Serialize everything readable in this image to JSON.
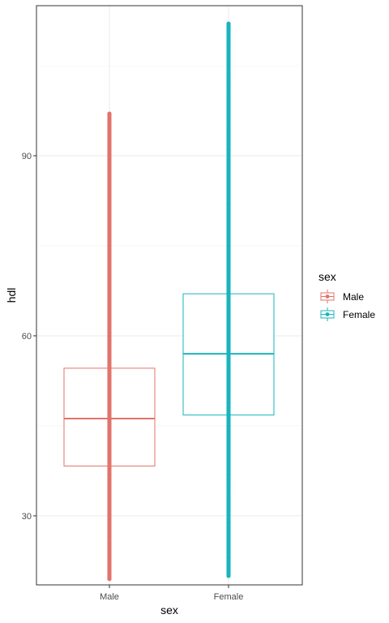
{
  "chart_data": {
    "type": "boxplot-with-points",
    "xlabel": "sex",
    "ylabel": "hdl",
    "categories": [
      "Male",
      "Female"
    ],
    "ylim": [
      18.5,
      115
    ],
    "yticks": [
      30,
      60,
      90
    ],
    "grid": true,
    "legend": {
      "title": "sex",
      "placement": "right",
      "entries": [
        "Male",
        "Female"
      ]
    },
    "colors": {
      "Male": "#e2736a",
      "Female": "#19b4bd"
    },
    "series": [
      {
        "name": "Male",
        "box": {
          "q1": 38.3,
          "median": 46.2,
          "q3": 54.6
        },
        "points": [
          19.5,
          20.0,
          21.0,
          22.5,
          23.5,
          24.5,
          25.5,
          26.5,
          27.0,
          28.0,
          29.0,
          30.0,
          31.0,
          32.0,
          33.0,
          34.0,
          35.0,
          36.0,
          37.0,
          38.0,
          39.0,
          40.0,
          41.0,
          42.0,
          43.0,
          44.0,
          45.0,
          46.0,
          47.0,
          48.0,
          49.0,
          50.0,
          51.0,
          52.0,
          53.0,
          54.0,
          55.0,
          56.0,
          57.0,
          58.0,
          59.0,
          60.0,
          61.0,
          62.0,
          63.0,
          64.0,
          65.0,
          66.0,
          67.0,
          68.0,
          69.0,
          70.0,
          71.0,
          72.0,
          73.0,
          74.0,
          75.0,
          76.0,
          77.0,
          78.0,
          79.0,
          80.0,
          81.0,
          82.0,
          83.0,
          84.0,
          85.0,
          86.0,
          87.0,
          88.0,
          90.0,
          91.5,
          92.5,
          94.0,
          95.0,
          97.0
        ]
      },
      {
        "name": "Female",
        "box": {
          "q1": 46.8,
          "median": 57.0,
          "q3": 67.0
        },
        "points": [
          20.0,
          21.0,
          22.0,
          23.0,
          24.0,
          25.0,
          26.0,
          27.0,
          28.0,
          29.0,
          30.0,
          31.0,
          32.0,
          33.0,
          34.0,
          35.0,
          36.0,
          37.0,
          38.0,
          39.0,
          40.0,
          41.0,
          42.0,
          43.0,
          44.0,
          45.0,
          46.0,
          47.0,
          48.0,
          49.0,
          50.0,
          51.0,
          52.0,
          53.0,
          54.0,
          55.0,
          56.0,
          57.0,
          58.0,
          59.0,
          60.0,
          61.0,
          62.0,
          63.0,
          64.0,
          65.0,
          66.0,
          67.0,
          68.0,
          69.0,
          70.0,
          71.0,
          72.0,
          73.0,
          74.0,
          75.0,
          76.0,
          77.0,
          78.0,
          79.0,
          80.0,
          81.0,
          82.0,
          83.0,
          84.0,
          85.0,
          86.0,
          87.0,
          88.0,
          89.0,
          90.0,
          91.0,
          92.0,
          93.0,
          94.0,
          95.0,
          96.0,
          97.5,
          99.0,
          100.0,
          101.5,
          102.5,
          103.0,
          108.0,
          112.0
        ]
      }
    ]
  }
}
